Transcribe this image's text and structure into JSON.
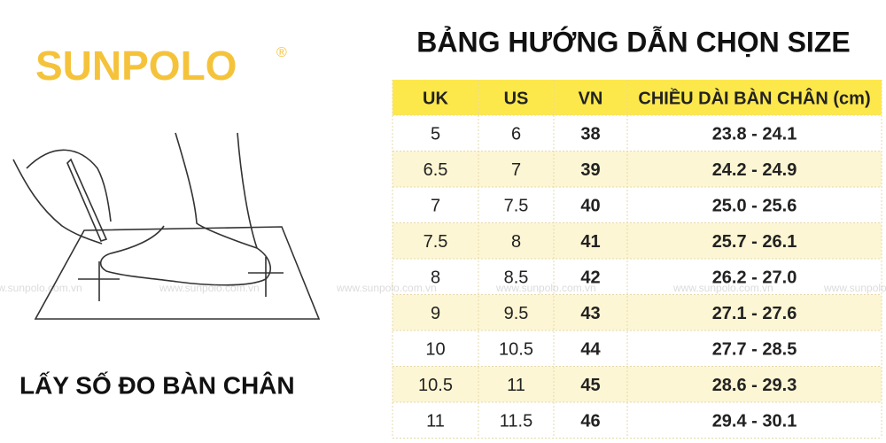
{
  "logo": {
    "name": "SUNPOLO",
    "mark": "®"
  },
  "caption": "LẤY SỐ ĐO BÀN CHÂN",
  "title": "BẢNG HƯỚNG DẪN CHỌN SIZE",
  "watermark": "www.sunpolo.com.vn",
  "table": {
    "header": [
      "UK",
      "US",
      "VN",
      "CHIỀU DÀI BÀN CHÂN (cm)"
    ],
    "rows": [
      [
        "5",
        "6",
        "38",
        "23.8 - 24.1"
      ],
      [
        "6.5",
        "7",
        "39",
        "24.2 - 24.9"
      ],
      [
        "7",
        "7.5",
        "40",
        "25.0 - 25.6"
      ],
      [
        "7.5",
        "8",
        "41",
        "25.7 - 26.1"
      ],
      [
        "8",
        "8.5",
        "42",
        "26.2 - 27.0"
      ],
      [
        "9",
        "9.5",
        "43",
        "27.1 - 27.6"
      ],
      [
        "10",
        "10.5",
        "44",
        "27.7 - 28.5"
      ],
      [
        "10.5",
        "11",
        "45",
        "28.6 - 29.3"
      ],
      [
        "11",
        "11.5",
        "46",
        "29.4 - 30.1"
      ]
    ]
  }
}
